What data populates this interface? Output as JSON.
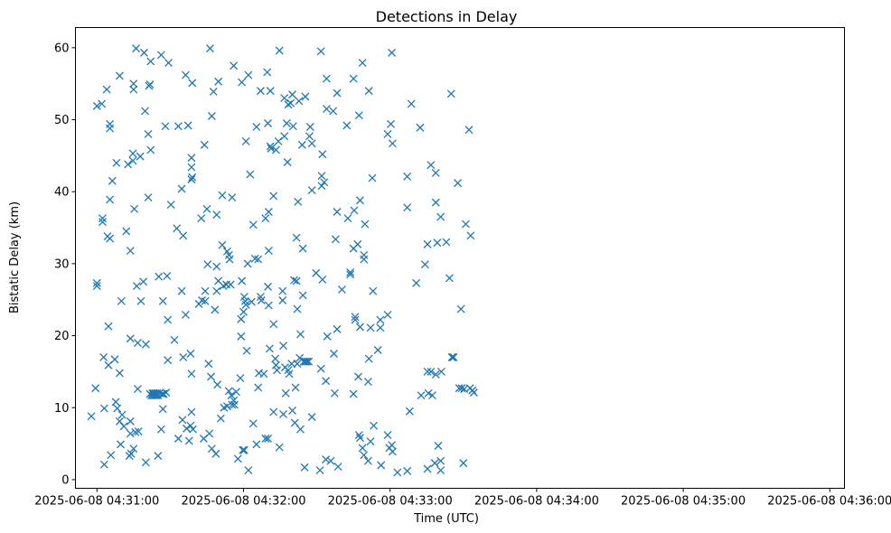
{
  "chart_data": {
    "type": "scatter",
    "title": "Detections in Delay",
    "xlabel": "Time (UTC)",
    "ylabel": "Bistatic Delay (km)",
    "grid": false,
    "marker": "x",
    "color": "#1f77b4",
    "x_unit": "seconds after 2025-06-08 04:31:00 UTC",
    "xlim": [
      -8.8,
      306.0
    ],
    "ylim": [
      -1.2,
      62.8
    ],
    "x_ticks": [
      {
        "value": 0,
        "label": "2025-06-08 04:31:00"
      },
      {
        "value": 60,
        "label": "2025-06-08 04:32:00"
      },
      {
        "value": 120,
        "label": "2025-06-08 04:33:00"
      },
      {
        "value": 180,
        "label": "2025-06-08 04:34:00"
      },
      {
        "value": 240,
        "label": "2025-06-08 04:35:00"
      },
      {
        "value": 300,
        "label": "2025-06-08 04:36:00"
      }
    ],
    "y_ticks": [
      {
        "value": 0,
        "label": "0"
      },
      {
        "value": 10,
        "label": "10"
      },
      {
        "value": 20,
        "label": "20"
      },
      {
        "value": 30,
        "label": "30"
      },
      {
        "value": 40,
        "label": "40"
      },
      {
        "value": 50,
        "label": "50"
      },
      {
        "value": 60,
        "label": "60"
      }
    ],
    "points": [
      [
        -2.3,
        8.8
      ],
      [
        -0.6,
        12.7
      ],
      [
        0,
        51.9
      ],
      [
        0,
        27.3
      ],
      [
        0,
        26.9
      ],
      [
        2,
        52.2
      ],
      [
        2.3,
        35.8
      ],
      [
        2.3,
        36.3
      ],
      [
        2.7,
        17.0
      ],
      [
        3,
        9.9
      ],
      [
        3,
        2.1
      ],
      [
        4,
        54.2
      ],
      [
        4.3,
        33.8
      ],
      [
        4.7,
        21.3
      ],
      [
        4.7,
        15.9
      ],
      [
        5.3,
        49.4
      ],
      [
        5.3,
        48.8
      ],
      [
        5.3,
        38.9
      ],
      [
        5.3,
        33.5
      ],
      [
        5.7,
        3.4
      ],
      [
        6.3,
        41.5
      ],
      [
        7.3,
        16.7
      ],
      [
        7.7,
        10.8
      ],
      [
        8,
        44.0
      ],
      [
        8.3,
        9.9
      ],
      [
        9.3,
        56.1
      ],
      [
        9.3,
        14.8
      ],
      [
        9.3,
        8.1
      ],
      [
        9.7,
        4.9
      ],
      [
        10,
        24.8
      ],
      [
        10.3,
        9.0
      ],
      [
        11,
        7.4
      ],
      [
        12,
        34.5
      ],
      [
        12.7,
        43.8
      ],
      [
        13.3,
        3.3
      ],
      [
        13.7,
        31.8
      ],
      [
        13.7,
        19.6
      ],
      [
        13.7,
        8.1
      ],
      [
        13.7,
        6.4
      ],
      [
        14,
        3.6
      ],
      [
        14.7,
        45.3
      ],
      [
        14.7,
        44.3
      ],
      [
        15,
        55.0
      ],
      [
        15,
        54.2
      ],
      [
        15,
        4.3
      ],
      [
        15.3,
        37.6
      ],
      [
        15.7,
        6.6
      ],
      [
        16,
        59.9
      ],
      [
        16.3,
        26.9
      ],
      [
        16.7,
        19.0
      ],
      [
        16.7,
        12.6
      ],
      [
        17,
        6.7
      ],
      [
        17.7,
        44.9
      ],
      [
        18,
        24.8
      ],
      [
        19,
        27.5
      ],
      [
        19.3,
        59.3
      ],
      [
        19.7,
        51.2
      ],
      [
        20,
        18.8
      ],
      [
        20,
        2.4
      ],
      [
        21,
        48.0
      ],
      [
        21,
        39.2
      ],
      [
        21.3,
        54.7
      ],
      [
        21.7,
        54.9
      ],
      [
        21.7,
        11.9
      ],
      [
        22,
        58.1
      ],
      [
        22,
        45.8
      ],
      [
        22.3,
        11.7
      ],
      [
        22.7,
        12.0
      ],
      [
        23,
        11.7
      ],
      [
        23.3,
        12.0
      ],
      [
        23.7,
        11.7
      ],
      [
        24,
        12.0
      ],
      [
        24.3,
        11.7
      ],
      [
        24.7,
        12.0
      ],
      [
        25,
        11.7
      ],
      [
        25,
        3.3
      ],
      [
        25.3,
        28.2
      ],
      [
        25.7,
        12.0
      ],
      [
        26.3,
        59.0
      ],
      [
        26.3,
        7.0
      ],
      [
        26.7,
        11.9
      ],
      [
        27,
        24.8
      ],
      [
        27,
        9.8
      ],
      [
        27.3,
        11.9
      ],
      [
        28,
        49.1
      ],
      [
        28.3,
        12.1
      ],
      [
        28.7,
        28.3
      ],
      [
        29,
        22.2
      ],
      [
        29,
        16.6
      ],
      [
        29.3,
        57.9
      ],
      [
        30.3,
        38.2
      ],
      [
        31.7,
        19.4
      ],
      [
        32.7,
        34.9
      ],
      [
        33.3,
        49.1
      ],
      [
        33.3,
        5.7
      ],
      [
        34.7,
        40.4
      ],
      [
        34.7,
        26.2
      ],
      [
        35,
        8.3
      ],
      [
        35.3,
        33.9
      ],
      [
        35.3,
        17.0
      ],
      [
        36.3,
        56.2
      ],
      [
        36.3,
        22.9
      ],
      [
        36.7,
        7.1
      ],
      [
        37.3,
        49.2
      ],
      [
        37.7,
        5.4
      ],
      [
        38.3,
        17.5
      ],
      [
        38.3,
        7.5
      ],
      [
        38.7,
        44.7
      ],
      [
        38.7,
        43.4
      ],
      [
        38.7,
        41.7
      ],
      [
        38.7,
        14.7
      ],
      [
        38.7,
        9.4
      ],
      [
        39,
        55.1
      ],
      [
        39,
        42.0
      ],
      [
        39.3,
        7.0
      ],
      [
        41.7,
        24.4
      ],
      [
        42.7,
        36.3
      ],
      [
        43,
        24.9
      ],
      [
        43.7,
        5.7
      ],
      [
        44,
        46.5
      ],
      [
        44.3,
        26.2
      ],
      [
        44.3,
        24.8
      ],
      [
        45,
        37.6
      ],
      [
        45.3,
        29.9
      ],
      [
        45.7,
        16.1
      ],
      [
        46,
        6.4
      ],
      [
        46.3,
        59.9
      ],
      [
        46.7,
        14.3
      ],
      [
        47,
        50.5
      ],
      [
        47,
        4.3
      ],
      [
        47.7,
        53.9
      ],
      [
        48.3,
        23.6
      ],
      [
        48.7,
        3.6
      ],
      [
        49,
        36.8
      ],
      [
        49,
        29.6
      ],
      [
        49,
        26.2
      ],
      [
        49.3,
        13.2
      ],
      [
        49.7,
        27.6
      ],
      [
        49.7,
        55.3
      ],
      [
        50.7,
        8.5
      ],
      [
        51.3,
        32.6
      ],
      [
        51.3,
        39.5
      ],
      [
        51.7,
        26.9
      ],
      [
        52,
        10.0
      ],
      [
        53,
        27.1
      ],
      [
        53.3,
        10.2
      ],
      [
        53.3,
        31.7
      ],
      [
        54,
        31.2
      ],
      [
        54,
        12.3
      ],
      [
        54.3,
        30.6
      ],
      [
        54.7,
        27.1
      ],
      [
        55,
        11.7
      ],
      [
        55.3,
        10.4
      ],
      [
        55.3,
        39.2
      ],
      [
        56,
        57.5
      ],
      [
        56,
        11.0
      ],
      [
        56.3,
        10.4
      ],
      [
        57,
        12.2
      ],
      [
        57.7,
        2.9
      ],
      [
        58.7,
        14.1
      ],
      [
        59,
        22.3
      ],
      [
        59,
        19.9
      ],
      [
        59.3,
        55.2
      ],
      [
        59.3,
        27.6
      ],
      [
        59.7,
        4.1
      ],
      [
        60,
        23.3
      ],
      [
        60.3,
        25.4
      ],
      [
        60.3,
        4.1
      ],
      [
        60.7,
        24.8
      ],
      [
        61,
        47.0
      ],
      [
        61,
        24.3
      ],
      [
        61.3,
        17.9
      ],
      [
        61.7,
        30.0
      ],
      [
        62,
        56.2
      ],
      [
        62,
        1.3
      ],
      [
        62.7,
        42.4
      ],
      [
        63.3,
        24.7
      ],
      [
        64,
        35.4
      ],
      [
        64,
        7.8
      ],
      [
        64.7,
        30.7
      ],
      [
        65.3,
        49.0
      ],
      [
        65.3,
        4.9
      ],
      [
        66,
        30.6
      ],
      [
        66,
        12.8
      ],
      [
        66.3,
        14.8
      ],
      [
        67,
        54.0
      ],
      [
        67,
        25.4
      ],
      [
        67.3,
        24.9
      ],
      [
        68.3,
        14.7
      ],
      [
        69,
        36.3
      ],
      [
        69,
        5.7
      ],
      [
        69.7,
        56.6
      ],
      [
        70,
        49.5
      ],
      [
        70,
        26.8
      ],
      [
        70,
        5.7
      ],
      [
        70.3,
        37.2
      ],
      [
        70.3,
        24.2
      ],
      [
        70.3,
        31.8
      ],
      [
        71,
        54.0
      ],
      [
        70.7,
        18.2
      ],
      [
        71,
        46.3
      ],
      [
        71.3,
        46.0
      ],
      [
        72.3,
        39.4
      ],
      [
        72.3,
        21.6
      ],
      [
        72.3,
        9.4
      ],
      [
        73,
        16.8
      ],
      [
        73.3,
        45.8
      ],
      [
        73.3,
        15.9
      ],
      [
        73.7,
        15.2
      ],
      [
        74.3,
        47.0
      ],
      [
        74.7,
        59.6
      ],
      [
        74.7,
        4.5
      ],
      [
        76,
        26.2
      ],
      [
        76,
        24.9
      ],
      [
        76.3,
        18.6
      ],
      [
        76.3,
        9.1
      ],
      [
        76.7,
        53.0
      ],
      [
        76.7,
        47.7
      ],
      [
        77,
        15.6
      ],
      [
        77.3,
        12.0
      ],
      [
        77.7,
        49.5
      ],
      [
        78,
        44.1
      ],
      [
        78.3,
        15.2
      ],
      [
        78.3,
        52.1
      ],
      [
        78.7,
        14.7
      ],
      [
        79.3,
        52.3
      ],
      [
        79.7,
        16.1
      ],
      [
        80,
        53.5
      ],
      [
        80,
        9.6
      ],
      [
        80.3,
        49.1
      ],
      [
        80.7,
        27.7
      ],
      [
        81,
        7.9
      ],
      [
        81.3,
        12.8
      ],
      [
        81.7,
        33.6
      ],
      [
        81.7,
        27.6
      ],
      [
        82,
        23.7
      ],
      [
        82,
        16.1
      ],
      [
        82.3,
        38.6
      ],
      [
        82.7,
        52.6
      ],
      [
        83,
        16.9
      ],
      [
        83.3,
        20.2
      ],
      [
        83.3,
        7.0
      ],
      [
        84,
        46.5
      ],
      [
        84.3,
        32.1
      ],
      [
        84.3,
        25.6
      ],
      [
        84.7,
        16.4
      ],
      [
        85,
        1.7
      ],
      [
        85.3,
        16.4
      ],
      [
        85.3,
        53.2
      ],
      [
        86,
        16.4
      ],
      [
        86.7,
        16.4
      ],
      [
        87,
        47.7
      ],
      [
        87.3,
        49.0
      ],
      [
        88,
        46.7
      ],
      [
        88,
        40.2
      ],
      [
        88,
        8.7
      ],
      [
        89.7,
        28.7
      ],
      [
        91.3,
        1.3
      ],
      [
        91.7,
        59.5
      ],
      [
        91.7,
        15.4
      ],
      [
        92,
        42.2
      ],
      [
        92,
        40.8
      ],
      [
        92.3,
        27.8
      ],
      [
        92.3,
        45.2
      ],
      [
        93,
        41.3
      ],
      [
        93.7,
        13.7
      ],
      [
        93.7,
        2.8
      ],
      [
        94,
        55.7
      ],
      [
        94,
        51.5
      ],
      [
        94.3,
        19.9
      ],
      [
        95.7,
        2.6
      ],
      [
        96.7,
        51.2
      ],
      [
        97,
        17.5
      ],
      [
        97.3,
        12.0
      ],
      [
        97.7,
        33.4
      ],
      [
        98.3,
        20.9
      ],
      [
        98.3,
        53.7
      ],
      [
        98.3,
        37.2
      ],
      [
        98.7,
        1.8
      ],
      [
        100.3,
        26.4
      ],
      [
        102.3,
        49.2
      ],
      [
        102.7,
        36.3
      ],
      [
        103.7,
        28.8
      ],
      [
        103.7,
        28.5
      ],
      [
        105,
        55.7
      ],
      [
        105,
        32.1
      ],
      [
        105,
        11.9
      ],
      [
        105.3,
        37.4
      ],
      [
        105.7,
        22.6
      ],
      [
        105.7,
        22.2
      ],
      [
        106.7,
        32.7
      ],
      [
        107,
        14.3
      ],
      [
        107.3,
        50.6
      ],
      [
        107.3,
        6.2
      ],
      [
        107.7,
        38.8
      ],
      [
        107.7,
        21.2
      ],
      [
        107.7,
        5.8
      ],
      [
        108.7,
        57.9
      ],
      [
        108.7,
        4.4
      ],
      [
        109.3,
        31.2
      ],
      [
        109.3,
        30.6
      ],
      [
        109.3,
        3.4
      ],
      [
        109.7,
        35.5
      ],
      [
        111,
        13.6
      ],
      [
        111,
        2.6
      ],
      [
        111.3,
        54.0
      ],
      [
        111.3,
        16.8
      ],
      [
        112,
        21.1
      ],
      [
        112,
        5.3
      ],
      [
        112.7,
        41.9
      ],
      [
        113,
        26.2
      ],
      [
        113.3,
        7.5
      ],
      [
        115,
        18.0
      ],
      [
        116,
        22.2
      ],
      [
        116,
        21.1
      ],
      [
        116.3,
        2.0
      ],
      [
        119,
        48.0
      ],
      [
        119,
        22.9
      ],
      [
        119,
        6.2
      ],
      [
        119.7,
        4.4
      ],
      [
        120.3,
        49.4
      ],
      [
        120.7,
        59.3
      ],
      [
        120.7,
        4.8
      ],
      [
        121,
        46.7
      ],
      [
        121,
        3.9
      ],
      [
        123,
        1.0
      ],
      [
        127,
        42.1
      ],
      [
        127,
        37.8
      ],
      [
        127,
        1.2
      ],
      [
        128,
        9.5
      ],
      [
        128.7,
        52.2
      ],
      [
        130.7,
        27.3
      ],
      [
        132.3,
        48.9
      ],
      [
        132.7,
        11.7
      ],
      [
        134.3,
        29.9
      ],
      [
        135.3,
        32.7
      ],
      [
        135.3,
        15.0
      ],
      [
        135.7,
        12.0
      ],
      [
        135.3,
        1.5
      ],
      [
        136.7,
        43.7
      ],
      [
        136.7,
        15.0
      ],
      [
        137.3,
        11.7
      ],
      [
        138.3,
        2.3
      ],
      [
        138.7,
        42.6
      ],
      [
        138.7,
        38.5
      ],
      [
        138.7,
        14.6
      ],
      [
        139.3,
        32.9
      ],
      [
        139.7,
        4.7
      ],
      [
        140.7,
        36.5
      ],
      [
        140.7,
        2.6
      ],
      [
        140.7,
        1.3
      ],
      [
        141,
        15.0
      ],
      [
        143,
        33.0
      ],
      [
        144.3,
        28.0
      ],
      [
        145,
        53.6
      ],
      [
        145.3,
        17.0
      ],
      [
        145.7,
        17.0
      ],
      [
        146,
        17.0
      ],
      [
        147.7,
        41.2
      ],
      [
        148.3,
        12.7
      ],
      [
        149,
        23.7
      ],
      [
        149.3,
        12.7
      ],
      [
        150,
        2.3
      ],
      [
        150.3,
        12.6
      ],
      [
        151,
        35.5
      ],
      [
        152.3,
        48.6
      ],
      [
        152.7,
        12.7
      ],
      [
        153,
        33.9
      ],
      [
        153.7,
        12.4
      ],
      [
        154.3,
        12.1
      ]
    ]
  }
}
